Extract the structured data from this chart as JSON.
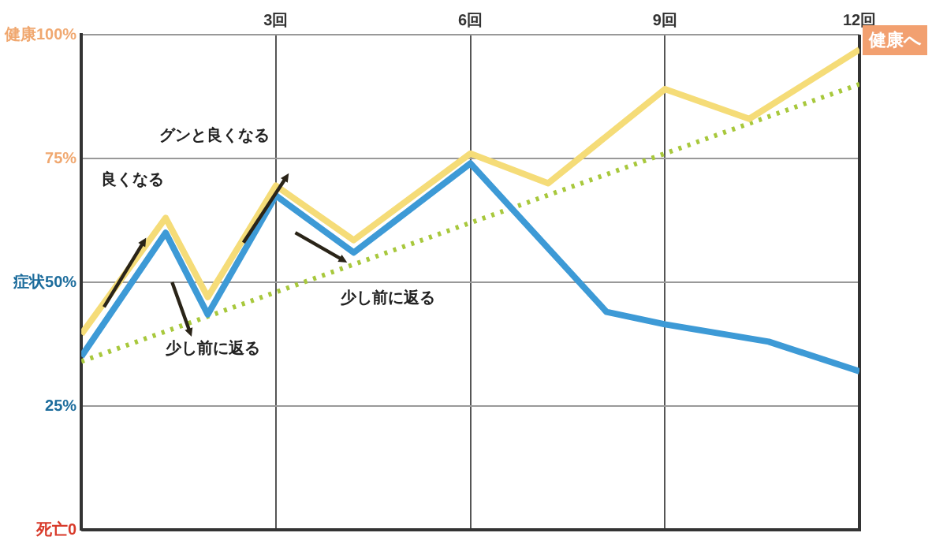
{
  "chart_data": {
    "type": "line",
    "xlim": [
      0,
      12
    ],
    "xticks": [
      {
        "value": 3,
        "label": "3回"
      },
      {
        "value": 6,
        "label": "6回"
      },
      {
        "value": 9,
        "label": "9回"
      },
      {
        "value": 12,
        "label": "12回"
      }
    ],
    "ylim": [
      0,
      100
    ],
    "yticks": [
      {
        "value": 0,
        "label": "死亡0"
      },
      {
        "value": 25,
        "label": "25%"
      },
      {
        "value": 50,
        "label": "症状50%"
      },
      {
        "value": 75,
        "label": "75%"
      },
      {
        "value": 100,
        "label": "健康100%"
      }
    ],
    "series": [
      {
        "color": "#f5dc78",
        "x": [
          0,
          1.3,
          1.95,
          3,
          4.2,
          6,
          7.2,
          9,
          10.3,
          12
        ],
        "values": [
          39.5,
          63,
          47,
          69.5,
          58.5,
          76,
          70,
          89,
          83,
          97
        ]
      },
      {
        "color": "#3d9ad6",
        "x": [
          0,
          1.3,
          1.95,
          3,
          4.2,
          6,
          8.1,
          9,
          10.6,
          12
        ],
        "values": [
          35,
          60,
          43.5,
          67.5,
          56,
          74,
          44,
          41.5,
          38,
          32
        ]
      },
      {
        "color": "#a8c83c",
        "line_style": "dotted",
        "x": [
          0,
          12
        ],
        "values": [
          34,
          90
        ]
      }
    ],
    "annotations": [
      "良くなる",
      "グンと良くなる",
      "少し前に返る",
      "少し前に返る",
      "健康へ"
    ],
    "grid": true,
    "legend": false,
    "marker": "none"
  }
}
